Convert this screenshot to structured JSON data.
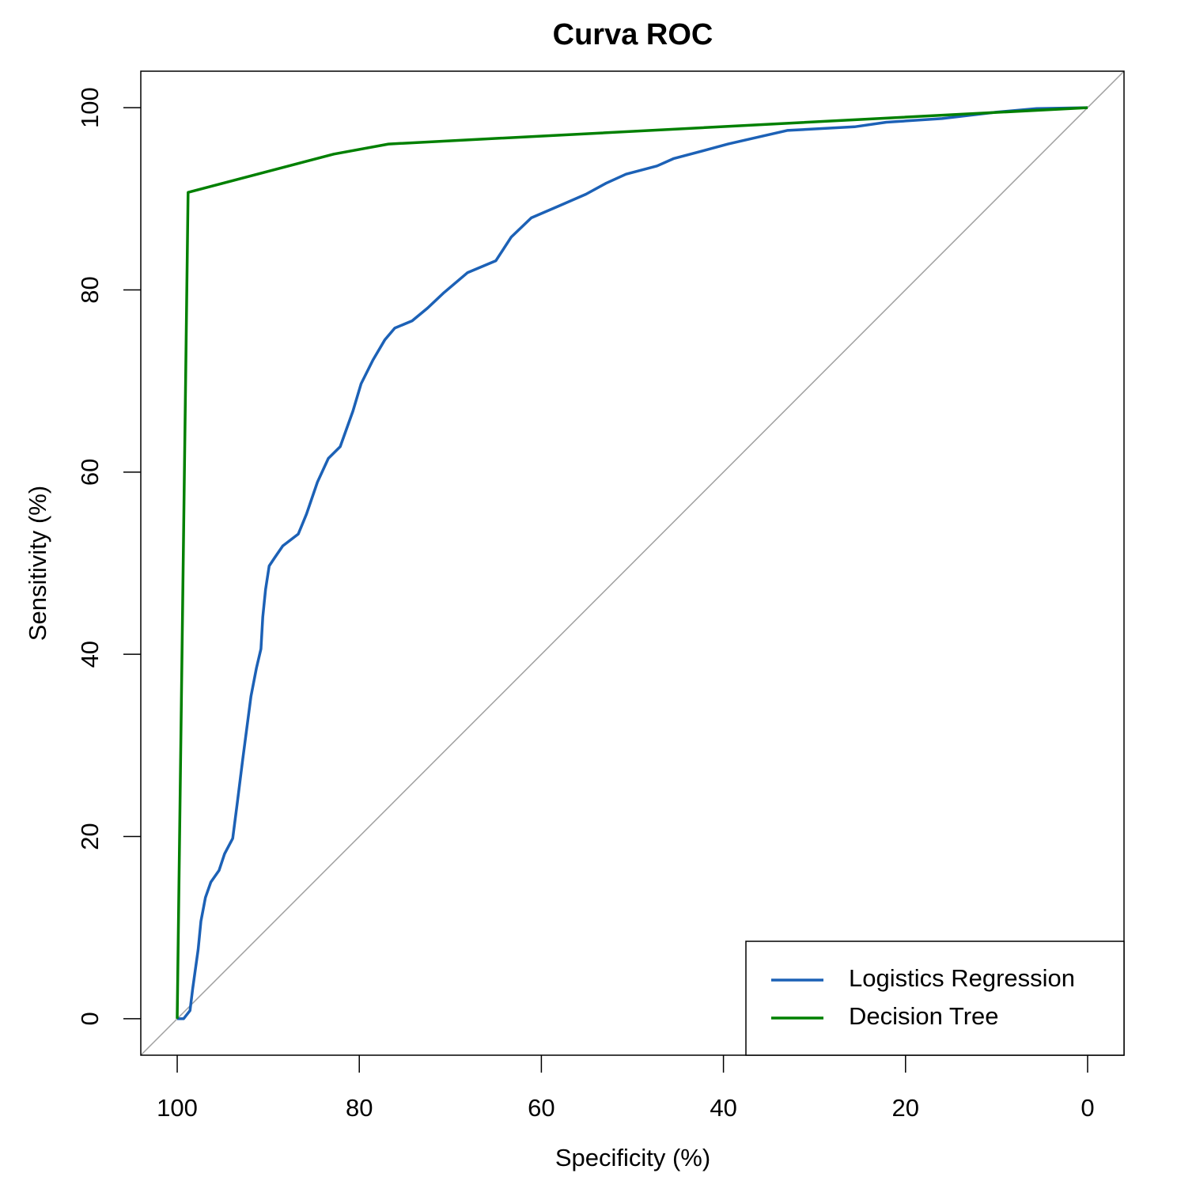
{
  "chart_data": {
    "type": "line",
    "title": "Curva ROC",
    "xlabel": "Specificity (%)",
    "ylabel": "Sensitivity (%)",
    "xlim": [
      104,
      -4
    ],
    "ylim": [
      -4,
      104
    ],
    "xticks": [
      100,
      80,
      60,
      40,
      20,
      0
    ],
    "yticks": [
      0,
      20,
      40,
      60,
      80,
      100
    ],
    "reference_line_color": "#a0a0a0",
    "legend": "bottom-right",
    "series": [
      {
        "name": "Logistics Regression",
        "color": "#1c61b6",
        "x": [
          100,
          99.3,
          98.6,
          98.3,
          97.7,
          97.4,
          96.9,
          96.3,
          95.4,
          94.8,
          93.9,
          93.4,
          92.8,
          91.9,
          91.3,
          90.8,
          90.6,
          90.3,
          89.9,
          89.3,
          88.4,
          86.7,
          85.8,
          84.6,
          83.4,
          82.1,
          80.7,
          79.8,
          78.5,
          77.2,
          76.1,
          74.2,
          72.5,
          70.7,
          68.1,
          65,
          63.3,
          61.1,
          58.1,
          55.1,
          52.9,
          50.7,
          47.3,
          45.5,
          42.1,
          39.5,
          36.9,
          33,
          25.6,
          22.1,
          16,
          10,
          5.6,
          0
        ],
        "values": [
          0,
          0,
          0.9,
          3.3,
          7.6,
          10.7,
          13.3,
          15,
          16.3,
          18.1,
          19.8,
          23.7,
          28.5,
          35.4,
          38.5,
          40.6,
          44.1,
          47.1,
          49.7,
          50.6,
          51.9,
          53.2,
          55.4,
          58.9,
          61.5,
          62.8,
          66.7,
          69.7,
          72.3,
          74.5,
          75.8,
          76.6,
          78,
          79.7,
          81.9,
          83.2,
          85.8,
          87.9,
          89.2,
          90.5,
          91.7,
          92.7,
          93.6,
          94.4,
          95.3,
          96,
          96.6,
          97.5,
          97.9,
          98.4,
          98.8,
          99.5,
          99.9,
          100
        ]
      },
      {
        "name": "Decision Tree",
        "color": "#008000",
        "x": [
          100,
          98.8,
          82.8,
          76.8,
          0
        ],
        "values": [
          0,
          90.7,
          94.9,
          96,
          100
        ]
      }
    ]
  }
}
